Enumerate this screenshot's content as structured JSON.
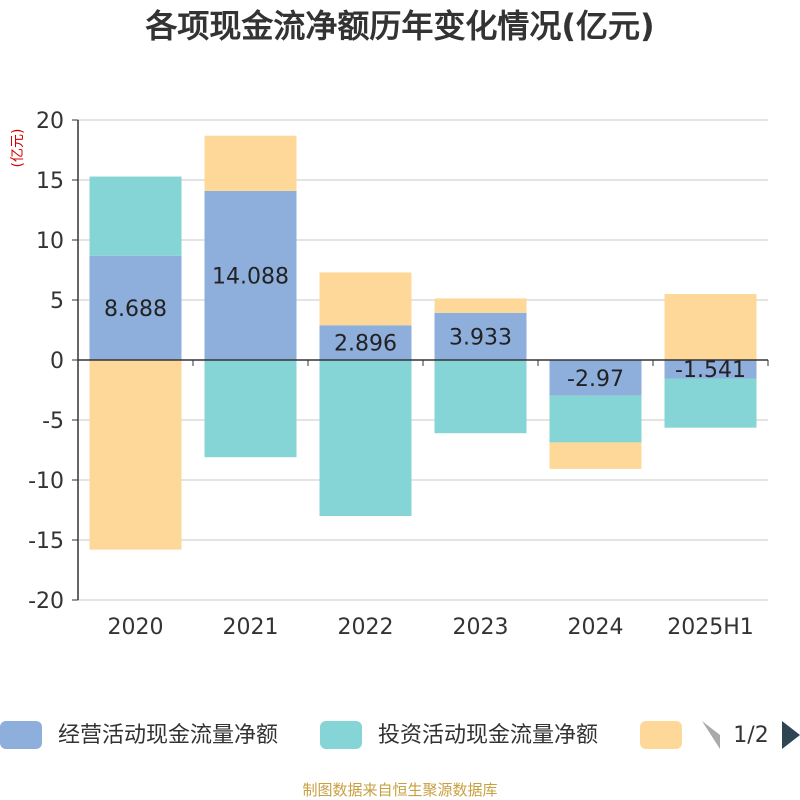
{
  "chart_data": {
    "type": "bar",
    "stacked": true,
    "title": "各项现金流净额历年变化情况(亿元)",
    "unit_label": "(亿元)",
    "categories": [
      "2020",
      "2021",
      "2022",
      "2023",
      "2024",
      "2025H1"
    ],
    "ylim": [
      -20,
      20
    ],
    "yticks": [
      20,
      15,
      10,
      5,
      0,
      -5,
      -10,
      -15,
      -20
    ],
    "grid": true,
    "series": [
      {
        "name": "经营活动现金流量净额",
        "color": "#8eaedc",
        "values": [
          8.688,
          14.088,
          2.896,
          3.933,
          -2.97,
          -1.541
        ],
        "labels": [
          "8.688",
          "14.088",
          "2.896",
          "3.933",
          "-2.97",
          "-1.541"
        ]
      },
      {
        "name": "投资活动现金流量净额",
        "color": "#86d5d6",
        "values": [
          6.6,
          -8.1,
          -13.0,
          -6.1,
          -3.9,
          -4.1
        ]
      },
      {
        "name": "",
        "color": "#fed898",
        "values": [
          -15.8,
          4.6,
          4.4,
          1.2,
          -2.2,
          5.5
        ]
      }
    ],
    "legend": {
      "position": "bottom",
      "page": "1/2"
    },
    "source": "制图数据来自恒生聚源数据库"
  }
}
